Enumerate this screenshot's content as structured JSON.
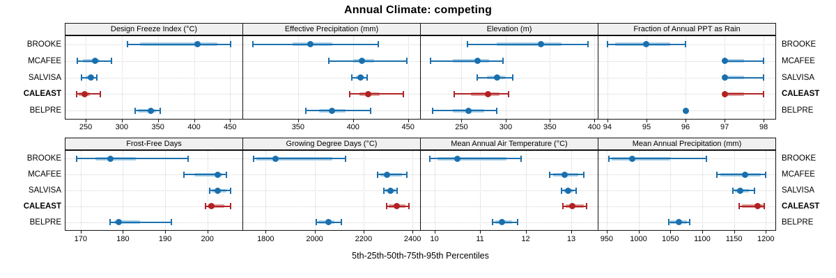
{
  "title": "Annual Climate: competing",
  "axis_title": "5th-25th-50th-75th-95th Percentiles",
  "stations": [
    "BROOKE",
    "MCAFEE",
    "SALVISA",
    "CALEAST",
    "BELPRE"
  ],
  "highlight_station": "CALEAST",
  "percentiles": [
    "5th",
    "25th",
    "50th",
    "75th",
    "95th"
  ],
  "colors": {
    "series_blue": "#1a6fad",
    "series_blue_band": "#a9cfe8",
    "highlight_red": "#b22222",
    "highlight_red_band": "#dc9b9b",
    "grid": "#d2d2d2",
    "strip_bg": "#f0f0f0",
    "panel_border": "#111111"
  },
  "chart_data": [
    {
      "type": "dot-percentile",
      "row": 0,
      "col": 0,
      "title": "Design Freeze Index (°C)",
      "xlim": [
        222,
        467
      ],
      "ticks": [
        250,
        300,
        350,
        400,
        450
      ],
      "series": [
        {
          "station": "BROOKE",
          "values": [
            308,
            325,
            405,
            432,
            451
          ]
        },
        {
          "station": "MCAFEE",
          "values": [
            238,
            246,
            263,
            269,
            286
          ]
        },
        {
          "station": "SALVISA",
          "values": [
            244,
            250,
            257,
            261,
            265
          ]
        },
        {
          "station": "CALEAST",
          "values": [
            237,
            240,
            249,
            256,
            270
          ]
        },
        {
          "station": "BELPRE",
          "values": [
            318,
            322,
            340,
            347,
            353
          ]
        }
      ]
    },
    {
      "type": "dot-percentile",
      "row": 0,
      "col": 1,
      "title": "Effective Precipitation (mm)",
      "xlim": [
        300,
        461
      ],
      "ticks": [
        350,
        400,
        450
      ],
      "series": [
        {
          "station": "BROOKE",
          "values": [
            309,
            345,
            361,
            381,
            423
          ]
        },
        {
          "station": "MCAFEE",
          "values": [
            378,
            400,
            408,
            419,
            449
          ]
        },
        {
          "station": "SALVISA",
          "values": [
            399,
            403,
            407,
            410,
            413
          ]
        },
        {
          "station": "CALEAST",
          "values": [
            397,
            406,
            414,
            424,
            446
          ]
        },
        {
          "station": "BELPRE",
          "values": [
            357,
            369,
            381,
            393,
            416
          ]
        }
      ]
    },
    {
      "type": "dot-percentile",
      "row": 0,
      "col": 2,
      "title": "Elevation (m)",
      "xlim": [
        204,
        404
      ],
      "ticks": [
        250,
        300,
        350,
        400
      ],
      "series": [
        {
          "station": "BROOKE",
          "values": [
            257,
            290,
            340,
            363,
            393
          ]
        },
        {
          "station": "MCAFEE",
          "values": [
            215,
            240,
            268,
            281,
            297
          ]
        },
        {
          "station": "SALVISA",
          "values": [
            268,
            279,
            290,
            299,
            308
          ]
        },
        {
          "station": "CALEAST",
          "values": [
            242,
            261,
            280,
            293,
            303
          ]
        },
        {
          "station": "BELPRE",
          "values": [
            217,
            240,
            258,
            276,
            290
          ]
        }
      ]
    },
    {
      "type": "dot-percentile",
      "row": 0,
      "col": 3,
      "title": "Fraction of Annual PPT as Rain",
      "xlim": [
        93.77,
        98.3
      ],
      "ticks": [
        94,
        95,
        96,
        97,
        98
      ],
      "series": [
        {
          "station": "BROOKE",
          "values": [
            94,
            94.2,
            95,
            95.6,
            96
          ]
        },
        {
          "station": "MCAFEE",
          "values": [
            97,
            97,
            97,
            97.5,
            98
          ]
        },
        {
          "station": "SALVISA",
          "values": [
            97,
            97,
            97,
            97.5,
            98
          ]
        },
        {
          "station": "CALEAST",
          "values": [
            97,
            97,
            97,
            97.5,
            98
          ]
        },
        {
          "station": "BELPRE",
          "values": [
            96,
            96,
            96,
            96,
            96
          ]
        }
      ]
    },
    {
      "type": "dot-percentile",
      "row": 1,
      "col": 0,
      "title": "Frost-Free Days",
      "xlim": [
        166.4,
        208.3
      ],
      "ticks": [
        170,
        180,
        190,
        200
      ],
      "series": [
        {
          "station": "BROOKE",
          "values": [
            169,
            173.5,
            177,
            183,
            195.5
          ]
        },
        {
          "station": "MCAFEE",
          "values": [
            194.5,
            197,
            202.5,
            203.5,
            204.5
          ]
        },
        {
          "station": "SALVISA",
          "values": [
            200.5,
            201,
            202.5,
            204.5,
            205.5
          ]
        },
        {
          "station": "CALEAST",
          "values": [
            199.5,
            200,
            201,
            204,
            205.5
          ]
        },
        {
          "station": "BELPRE",
          "values": [
            177,
            178,
            179,
            184,
            191.5
          ]
        }
      ]
    },
    {
      "type": "dot-percentile",
      "row": 1,
      "col": 1,
      "title": "Growing Degree Days (°C)",
      "xlim": [
        1708,
        2431
      ],
      "ticks": [
        1800,
        2000,
        2200,
        2400
      ],
      "series": [
        {
          "station": "BROOKE",
          "values": [
            1750,
            1762,
            1840,
            2072,
            2127
          ]
        },
        {
          "station": "MCAFEE",
          "values": [
            2258,
            2270,
            2297,
            2358,
            2378
          ]
        },
        {
          "station": "SALVISA",
          "values": [
            2283,
            2290,
            2310,
            2330,
            2336
          ]
        },
        {
          "station": "CALEAST",
          "values": [
            2295,
            2303,
            2335,
            2372,
            2386
          ]
        },
        {
          "station": "BELPRE",
          "values": [
            2008,
            2015,
            2057,
            2082,
            2110
          ]
        }
      ]
    },
    {
      "type": "dot-percentile",
      "row": 1,
      "col": 2,
      "title": "Mean Annual Air Temperature (°C)",
      "xlim": [
        9.7,
        13.58
      ],
      "ticks": [
        10,
        11,
        12,
        13
      ],
      "series": [
        {
          "station": "BROOKE",
          "values": [
            9.9,
            10.07,
            10.5,
            11.58,
            11.9
          ]
        },
        {
          "station": "MCAFEE",
          "values": [
            12.53,
            12.6,
            12.85,
            13.15,
            13.27
          ]
        },
        {
          "station": "SALVISA",
          "values": [
            12.78,
            12.83,
            12.93,
            13.05,
            13.1
          ]
        },
        {
          "station": "CALEAST",
          "values": [
            12.81,
            12.87,
            13.03,
            13.27,
            13.33
          ]
        },
        {
          "station": "BELPRE",
          "values": [
            11.28,
            11.33,
            11.48,
            11.7,
            11.82
          ]
        }
      ]
    },
    {
      "type": "dot-percentile",
      "row": 1,
      "col": 3,
      "title": "Mean Annual Precipitation (mm)",
      "xlim": [
        937,
        1215
      ],
      "ticks": [
        950,
        1000,
        1050,
        1100,
        1150,
        1200
      ],
      "series": [
        {
          "station": "BROOKE",
          "values": [
            953,
            958,
            990,
            1050,
            1107
          ]
        },
        {
          "station": "MCAFEE",
          "values": [
            1123,
            1128,
            1167,
            1192,
            1200
          ]
        },
        {
          "station": "SALVISA",
          "values": [
            1148,
            1152,
            1160,
            1173,
            1182
          ]
        },
        {
          "station": "CALEAST",
          "values": [
            1158,
            1162,
            1187,
            1196,
            1198
          ]
        },
        {
          "station": "BELPRE",
          "values": [
            1047,
            1050,
            1063,
            1076,
            1080
          ]
        }
      ]
    }
  ]
}
